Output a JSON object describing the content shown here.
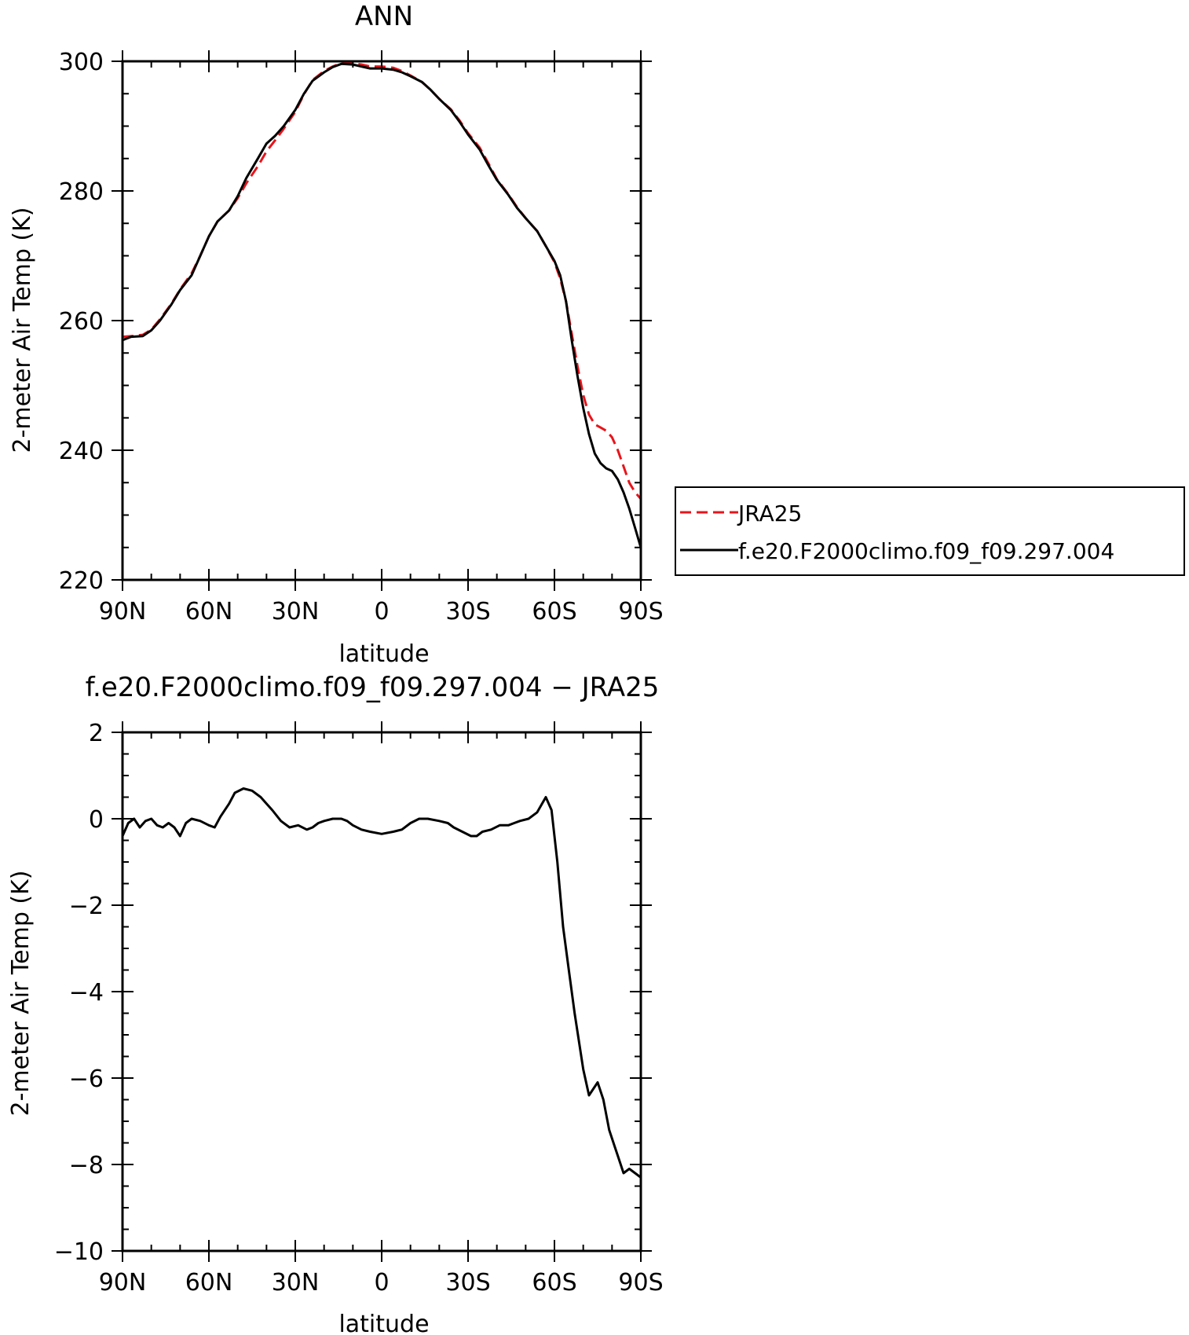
{
  "chart_data": [
    {
      "type": "line",
      "title": "ANN",
      "xlabel": "latitude",
      "ylabel": "2-meter Air Temp (K)",
      "xlim": [
        90,
        -90
      ],
      "ylim": [
        220,
        300
      ],
      "x_ticks": [
        90,
        60,
        30,
        0,
        -30,
        -60,
        -90
      ],
      "x_tick_labels": [
        "90N",
        "60N",
        "30N",
        "0",
        "30S",
        "60S",
        "90S"
      ],
      "y_ticks": [
        220,
        240,
        260,
        280,
        300
      ],
      "y_tick_labels": [
        "220",
        "240",
        "260",
        "280",
        "300"
      ],
      "legend": "outside-right",
      "series": [
        {
          "name": "JRA25",
          "color": "#e8141b",
          "style": "dashed",
          "x": [
            90,
            87,
            83,
            80,
            77,
            73,
            70,
            66,
            63,
            60,
            57,
            53,
            50,
            47,
            43,
            40,
            37,
            34,
            30,
            27,
            24,
            20,
            17,
            14,
            10,
            7,
            4,
            0,
            -4,
            -7,
            -10,
            -14,
            -17,
            -20,
            -24,
            -27,
            -30,
            -34,
            -37,
            -40,
            -44,
            -47,
            -50,
            -54,
            -57,
            -60,
            -62,
            -64,
            -66,
            -68,
            -70,
            -72,
            -74,
            -76,
            -78,
            -80,
            -82,
            -84,
            -86,
            -88,
            -90
          ],
          "y": [
            257.5,
            257.6,
            257.8,
            258.6,
            260.2,
            262.6,
            264.8,
            267.3,
            270.0,
            273.0,
            275.3,
            277.0,
            278.9,
            281.2,
            283.8,
            286.1,
            287.8,
            289.6,
            292.2,
            294.9,
            297.1,
            298.5,
            299.2,
            299.7,
            299.7,
            299.5,
            299.2,
            299.2,
            299.0,
            298.5,
            297.8,
            296.8,
            295.6,
            294.2,
            292.6,
            290.9,
            288.9,
            286.7,
            284.3,
            281.8,
            279.5,
            277.5,
            275.8,
            273.8,
            271.5,
            269.0,
            266.5,
            263.0,
            258.0,
            253.0,
            248.5,
            245.5,
            244.0,
            243.5,
            243.0,
            242.0,
            240.0,
            237.5,
            235.0,
            233.5,
            232.5
          ]
        },
        {
          "name": "f.e20.F2000climo.f09_f09.297.004",
          "color": "#000000",
          "style": "solid",
          "x": [
            90,
            87,
            83,
            80,
            77,
            73,
            70,
            66,
            63,
            60,
            57,
            53,
            50,
            47,
            43,
            40,
            37,
            34,
            30,
            27,
            24,
            20,
            17,
            14,
            10,
            7,
            4,
            0,
            -4,
            -7,
            -10,
            -14,
            -17,
            -20,
            -24,
            -27,
            -30,
            -34,
            -37,
            -40,
            -44,
            -47,
            -50,
            -54,
            -57,
            -60,
            -62,
            -64,
            -66,
            -68,
            -70,
            -72,
            -74,
            -76,
            -78,
            -80,
            -82,
            -84,
            -86,
            -88,
            -90
          ],
          "y": [
            257.0,
            257.5,
            257.6,
            258.5,
            260.0,
            262.5,
            264.7,
            267.0,
            270.0,
            273.0,
            275.3,
            277.0,
            279.2,
            282.0,
            285.0,
            287.3,
            288.5,
            290.0,
            292.5,
            295.0,
            297.0,
            298.3,
            299.1,
            299.6,
            299.5,
            299.2,
            298.9,
            298.9,
            298.7,
            298.3,
            297.7,
            296.8,
            295.6,
            294.2,
            292.5,
            290.7,
            288.7,
            286.4,
            284.0,
            281.7,
            279.4,
            277.4,
            275.8,
            273.8,
            271.5,
            269.2,
            267.0,
            263.0,
            257.0,
            251.5,
            246.5,
            242.5,
            239.5,
            238.0,
            237.2,
            236.8,
            235.5,
            233.5,
            231.0,
            228.0,
            225.0
          ]
        }
      ]
    },
    {
      "type": "line",
      "title": "f.e20.F2000climo.f09_f09.297.004 − JRA25",
      "xlabel": "latitude",
      "ylabel": "2-meter Air Temp (K)",
      "xlim": [
        90,
        -90
      ],
      "ylim": [
        -10,
        2
      ],
      "x_ticks": [
        90,
        60,
        30,
        0,
        -30,
        -60,
        -90
      ],
      "x_tick_labels": [
        "90N",
        "60N",
        "30N",
        "0",
        "30S",
        "60S",
        "90S"
      ],
      "y_ticks": [
        -10,
        -8,
        -6,
        -4,
        -2,
        0,
        2
      ],
      "y_tick_labels": [
        "−10",
        "−8",
        "−6",
        "−4",
        "−2",
        "0",
        "2"
      ],
      "series": [
        {
          "color": "#000000",
          "style": "solid",
          "x": [
            90,
            88,
            86,
            84,
            82,
            80,
            78,
            76,
            74,
            72,
            70,
            68,
            66,
            63,
            60,
            58,
            56,
            53,
            51,
            48,
            45,
            42,
            40,
            38,
            35,
            32,
            29,
            26,
            24,
            22,
            20,
            17,
            14,
            12,
            10,
            7,
            4,
            0,
            -4,
            -7,
            -10,
            -13,
            -16,
            -20,
            -23,
            -25,
            -28,
            -31,
            -33,
            -35,
            -38,
            -41,
            -44,
            -46,
            -48,
            -51,
            -54,
            -57,
            -59,
            -61,
            -63,
            -65,
            -67,
            -70,
            -72,
            -75,
            -77,
            -79,
            -81,
            -82,
            -84,
            -86,
            -88,
            -90
          ],
          "y": [
            -0.4,
            -0.1,
            0.0,
            -0.2,
            -0.05,
            0.0,
            -0.15,
            -0.2,
            -0.1,
            -0.2,
            -0.4,
            -0.1,
            0.0,
            -0.05,
            -0.15,
            -0.2,
            0.05,
            0.35,
            0.6,
            0.7,
            0.65,
            0.5,
            0.35,
            0.2,
            -0.05,
            -0.2,
            -0.15,
            -0.25,
            -0.2,
            -0.1,
            -0.05,
            0.0,
            0.0,
            -0.05,
            -0.15,
            -0.25,
            -0.3,
            -0.35,
            -0.3,
            -0.25,
            -0.1,
            0.0,
            0.0,
            -0.05,
            -0.1,
            -0.2,
            -0.3,
            -0.4,
            -0.4,
            -0.3,
            -0.25,
            -0.15,
            -0.15,
            -0.1,
            -0.05,
            0.0,
            0.15,
            0.5,
            0.2,
            -1.0,
            -2.5,
            -3.5,
            -4.5,
            -5.8,
            -6.4,
            -6.1,
            -6.5,
            -7.2,
            -7.6,
            -7.8,
            -8.2,
            -8.1,
            -8.2,
            -8.3
          ]
        }
      ]
    }
  ]
}
